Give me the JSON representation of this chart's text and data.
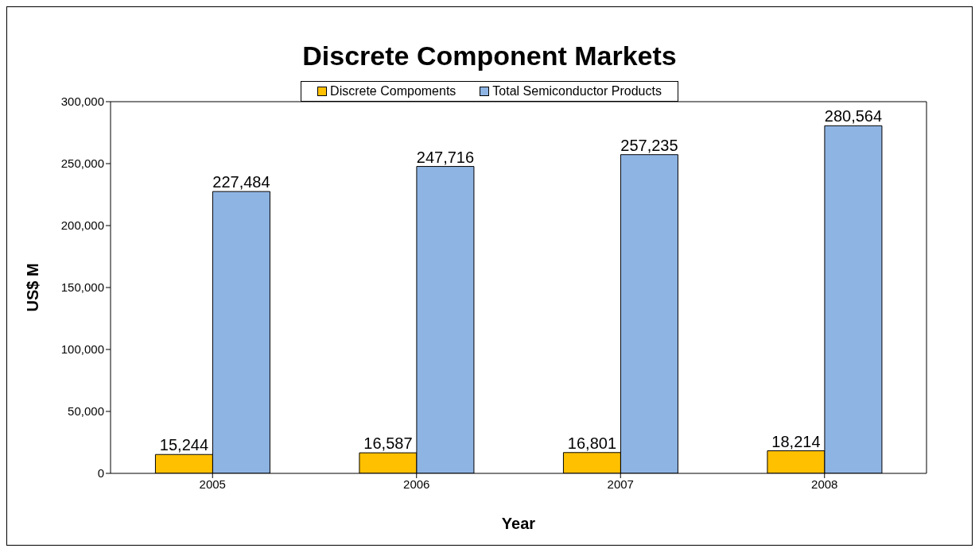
{
  "chart_data": {
    "type": "bar",
    "title": "Discrete Component Markets",
    "xlabel": "Year",
    "ylabel": "US$ M",
    "categories": [
      "2005",
      "2006",
      "2007",
      "2008"
    ],
    "series": [
      {
        "name": "Discrete Compoments",
        "color": "#ffc000",
        "values": [
          15244,
          16587,
          16801,
          18214
        ],
        "value_labels": [
          "15,244",
          "16,587",
          "16,801",
          "18,214"
        ]
      },
      {
        "name": "Total Semiconductor Products",
        "color": "#8eb4e3",
        "values": [
          227484,
          247716,
          257235,
          280564
        ],
        "value_labels": [
          "227,484",
          "247,716",
          "257,235",
          "280,564"
        ]
      }
    ],
    "ylim": [
      0,
      300000
    ],
    "yticks": [
      0,
      {
        "value": 50000,
        "label": "50,000"
      },
      {
        "value": 100000,
        "label": "100,000"
      },
      {
        "value": 150000,
        "label": "150,000"
      },
      {
        "value": 200000,
        "label": "200,000"
      },
      {
        "value": 250000,
        "label": "250,000"
      },
      {
        "value": 300000,
        "label": "300,000"
      }
    ],
    "grid": false,
    "legend": "top"
  }
}
